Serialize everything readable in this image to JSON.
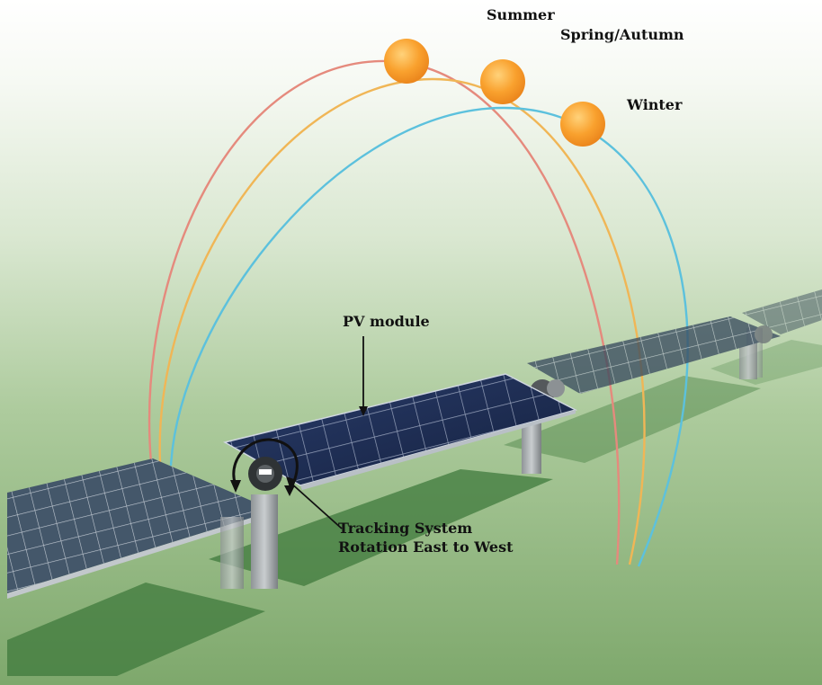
{
  "labels": {
    "summer": "Summer",
    "spring_autumn": "Spring/Autumn",
    "winter": "Winter",
    "pv_module": "PV module",
    "tracking_line1": "Tracking System",
    "tracking_line2": "Rotation East to West"
  },
  "colors": {
    "summer_path": "#e58a7d",
    "spring_autumn_path": "#f0b656",
    "winter_path": "#5cc1dd",
    "sun": "#f7941d",
    "ground": "#8ab27a",
    "panel": "#1d2d55",
    "shadow": "#2f6a30"
  }
}
